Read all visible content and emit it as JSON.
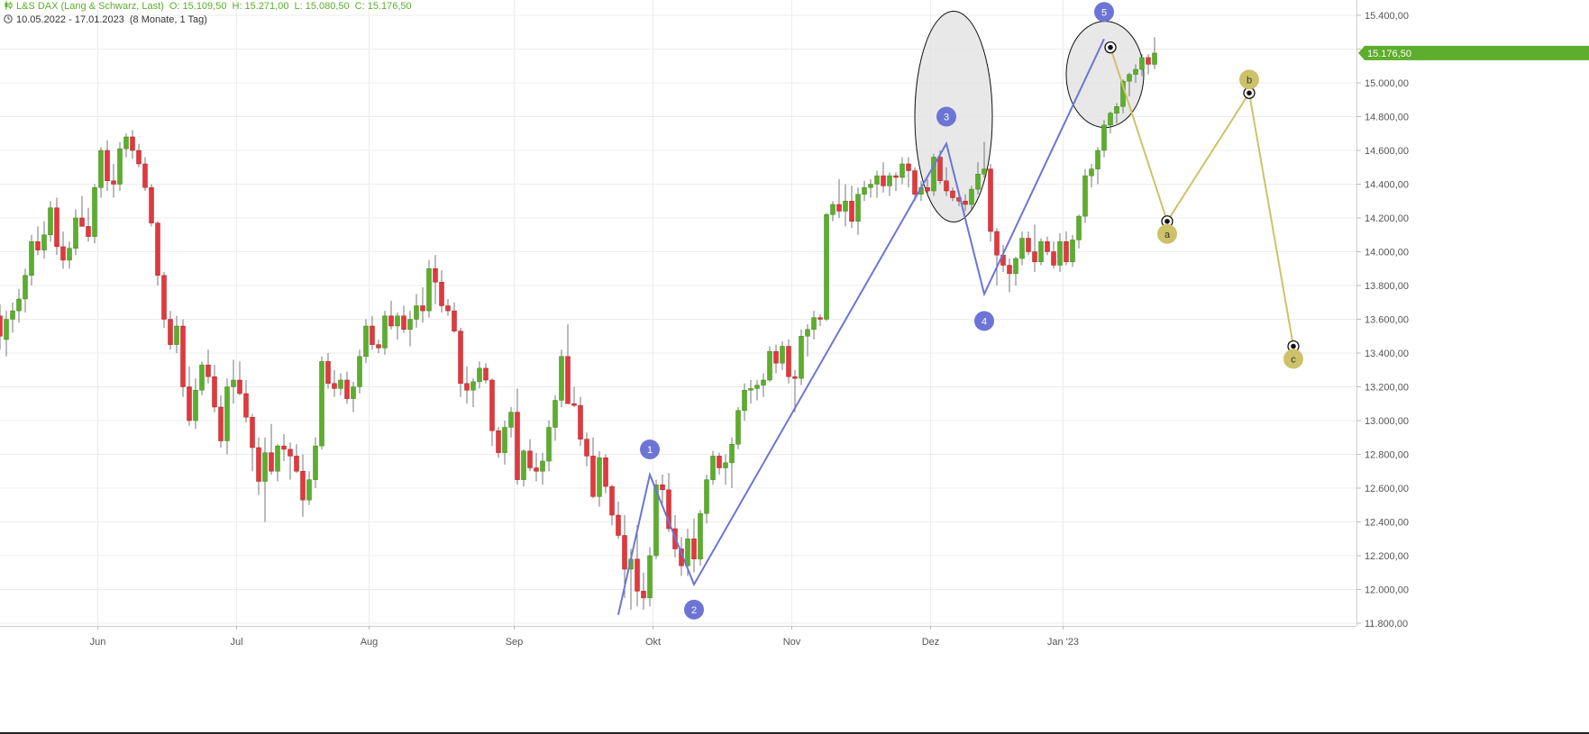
{
  "header": {
    "instrument": "L&S DAX (Lang & Schwarz, Last)",
    "open": "O: 15.109,50",
    "high": "H: 15.271,00",
    "low": "L: 15.080,50",
    "close": "C: 15.176,50",
    "range": "10.05.2022 - 17.01.2023",
    "period": "(8 Monate, 1 Tag)",
    "chart_icon": "candlestick-icon",
    "clock_icon": "clock-icon"
  },
  "colors": {
    "up": "#5cae2c",
    "down": "#e0393e",
    "wave_impulse": "#6c75d6",
    "wave_correction": "#cdc26a",
    "grid": "#ececec",
    "ellipse_fill": "#e4e4e4",
    "price_tag": "#5cae2c"
  },
  "chart_data": {
    "type": "candlestick",
    "x_axis_labels": [
      "Jun",
      "Jul",
      "Aug",
      "Sep",
      "Okt",
      "Nov",
      "Dez",
      "Jan '23"
    ],
    "y_ticks": [
      "15.400,00",
      "15.200,00",
      "15.000,00",
      "14.800,00",
      "14.600,00",
      "14.400,00",
      "14.200,00",
      "14.000,00",
      "13.800,00",
      "13.600,00",
      "13.400,00",
      "13.200,00",
      "13.000,00",
      "12.800,00",
      "12.600,00",
      "12.400,00",
      "12.200,00",
      "12.000,00",
      "11.800,00"
    ],
    "y_tick_values": [
      15400,
      15200,
      15000,
      14800,
      14600,
      14400,
      14200,
      14000,
      13800,
      13600,
      13400,
      13200,
      13000,
      12800,
      12600,
      12400,
      12200,
      12000,
      11800
    ],
    "ylim": [
      11700,
      15470
    ],
    "month_starts": [
      {
        "label": "Jun",
        "index": 15.5
      },
      {
        "label": "Jul",
        "index": 37.5
      },
      {
        "label": "Aug",
        "index": 58.5
      },
      {
        "label": "Sep",
        "index": 81.5
      },
      {
        "label": "Okt",
        "index": 103.5
      },
      {
        "label": "Nov",
        "index": 125.5
      },
      {
        "label": "Dez",
        "index": 147.5
      },
      {
        "label": "Jan '23",
        "index": 168.5
      }
    ],
    "last_price_label": "15.176,50",
    "last_price": 15176.5,
    "candles": [
      [
        13620,
        13690,
        13420,
        13500
      ],
      [
        13480,
        13650,
        13380,
        13600
      ],
      [
        13600,
        13700,
        13520,
        13650
      ],
      [
        13650,
        13780,
        13580,
        13720
      ],
      [
        13720,
        13900,
        13640,
        13860
      ],
      [
        13860,
        14100,
        13800,
        14060
      ],
      [
        14060,
        14150,
        13980,
        14010
      ],
      [
        14010,
        14180,
        13960,
        14100
      ],
      [
        14100,
        14300,
        14060,
        14260
      ],
      [
        14260,
        14320,
        13980,
        14030
      ],
      [
        14030,
        14120,
        13900,
        13950
      ],
      [
        13950,
        14060,
        13900,
        14020
      ],
      [
        14020,
        14250,
        13980,
        14200
      ],
      [
        14200,
        14330,
        14150,
        14150
      ],
      [
        14150,
        14260,
        14060,
        14090
      ],
      [
        14090,
        14400,
        14050,
        14380
      ],
      [
        14380,
        14620,
        14320,
        14600
      ],
      [
        14600,
        14660,
        14360,
        14420
      ],
      [
        14420,
        14520,
        14320,
        14400
      ],
      [
        14400,
        14650,
        14360,
        14610
      ],
      [
        14610,
        14700,
        14560,
        14680
      ],
      [
        14680,
        14720,
        14550,
        14600
      ],
      [
        14600,
        14640,
        14500,
        14520
      ],
      [
        14520,
        14560,
        14360,
        14380
      ],
      [
        14380,
        14400,
        14150,
        14170
      ],
      [
        14170,
        14180,
        13800,
        13860
      ],
      [
        13860,
        13880,
        13550,
        13600
      ],
      [
        13600,
        13650,
        13420,
        13450
      ],
      [
        13450,
        13620,
        13400,
        13560
      ],
      [
        13560,
        13600,
        13140,
        13200
      ],
      [
        13200,
        13320,
        12970,
        13000
      ],
      [
        13000,
        13250,
        12950,
        13180
      ],
      [
        13180,
        13350,
        13150,
        13330
      ],
      [
        13330,
        13420,
        13220,
        13260
      ],
      [
        13260,
        13330,
        13050,
        13080
      ],
      [
        13080,
        13150,
        12840,
        12880
      ],
      [
        12880,
        13250,
        12800,
        13200
      ],
      [
        13200,
        13360,
        13100,
        13240
      ],
      [
        13240,
        13350,
        13150,
        13160
      ],
      [
        13160,
        13240,
        12990,
        13020
      ],
      [
        13020,
        13040,
        12700,
        12840
      ],
      [
        12840,
        12900,
        12560,
        12640
      ],
      [
        12640,
        12900,
        12400,
        12810
      ],
      [
        12810,
        12980,
        12680,
        12700
      ],
      [
        12700,
        12860,
        12640,
        12850
      ],
      [
        12850,
        12920,
        12760,
        12830
      ],
      [
        12830,
        12870,
        12650,
        12790
      ],
      [
        12790,
        12860,
        12690,
        12700
      ],
      [
        12700,
        12800,
        12430,
        12530
      ],
      [
        12530,
        12700,
        12500,
        12650
      ],
      [
        12650,
        12900,
        12600,
        12850
      ],
      [
        12850,
        13380,
        12830,
        13350
      ],
      [
        13350,
        13400,
        13190,
        13220
      ],
      [
        13220,
        13300,
        13140,
        13190
      ],
      [
        13190,
        13280,
        13150,
        13240
      ],
      [
        13240,
        13290,
        13100,
        13130
      ],
      [
        13130,
        13230,
        13050,
        13200
      ],
      [
        13200,
        13420,
        13160,
        13380
      ],
      [
        13380,
        13600,
        13340,
        13560
      ],
      [
        13560,
        13620,
        13420,
        13450
      ],
      [
        13450,
        13480,
        13400,
        13430
      ],
      [
        13430,
        13650,
        13390,
        13620
      ],
      [
        13620,
        13710,
        13540,
        13560
      ],
      [
        13560,
        13640,
        13480,
        13620
      ],
      [
        13620,
        13680,
        13520,
        13540
      ],
      [
        13540,
        13650,
        13440,
        13600
      ],
      [
        13600,
        13750,
        13550,
        13680
      ],
      [
        13680,
        13790,
        13580,
        13650
      ],
      [
        13650,
        13950,
        13610,
        13900
      ],
      [
        13900,
        13980,
        13690,
        13820
      ],
      [
        13820,
        13890,
        13640,
        13680
      ],
      [
        13680,
        13720,
        13620,
        13650
      ],
      [
        13650,
        13700,
        13520,
        13530
      ],
      [
        13530,
        13550,
        13140,
        13220
      ],
      [
        13220,
        13320,
        13100,
        13180
      ],
      [
        13180,
        13250,
        13080,
        13230
      ],
      [
        13230,
        13350,
        13190,
        13310
      ],
      [
        13310,
        13340,
        13220,
        13240
      ],
      [
        13240,
        13250,
        12850,
        12940
      ],
      [
        12940,
        12960,
        12780,
        12810
      ],
      [
        12810,
        13000,
        12740,
        12960
      ],
      [
        12960,
        13080,
        12900,
        13050
      ],
      [
        13050,
        13190,
        12620,
        12650
      ],
      [
        12650,
        12830,
        12610,
        12820
      ],
      [
        12820,
        12890,
        12700,
        12720
      ],
      [
        12720,
        12810,
        12640,
        12700
      ],
      [
        12700,
        12810,
        12620,
        12760
      ],
      [
        12760,
        13000,
        12700,
        12960
      ],
      [
        12960,
        13150,
        12880,
        13120
      ],
      [
        13120,
        13420,
        13080,
        13380
      ],
      [
        13380,
        13570,
        13100,
        13100
      ],
      [
        13100,
        13200,
        13080,
        13090
      ],
      [
        13090,
        13140,
        12850,
        12890
      ],
      [
        12890,
        12930,
        12730,
        12790
      ],
      [
        12790,
        12900,
        12540,
        12550
      ],
      [
        12550,
        12820,
        12490,
        12780
      ],
      [
        12780,
        12800,
        12570,
        12610
      ],
      [
        12610,
        12620,
        12380,
        12440
      ],
      [
        12440,
        12520,
        12300,
        12320
      ],
      [
        12320,
        12440,
        11950,
        12120
      ],
      [
        12120,
        12240,
        11880,
        12180
      ],
      [
        12180,
        12380,
        11900,
        11990
      ],
      [
        11990,
        12100,
        11880,
        11950
      ],
      [
        11950,
        12250,
        11900,
        12200
      ],
      [
        12200,
        12650,
        12180,
        12620
      ],
      [
        12620,
        12680,
        12510,
        12590
      ],
      [
        12590,
        12690,
        12340,
        12360
      ],
      [
        12360,
        12440,
        12190,
        12240
      ],
      [
        12240,
        12310,
        12080,
        12140
      ],
      [
        12140,
        12360,
        12080,
        12300
      ],
      [
        12300,
        12420,
        12100,
        12180
      ],
      [
        12180,
        12470,
        12140,
        12450
      ],
      [
        12450,
        12680,
        12390,
        12650
      ],
      [
        12650,
        12820,
        12620,
        12790
      ],
      [
        12790,
        12810,
        12680,
        12720
      ],
      [
        12720,
        12800,
        12620,
        12750
      ],
      [
        12750,
        12900,
        12600,
        12860
      ],
      [
        12860,
        13080,
        12830,
        13060
      ],
      [
        13060,
        13220,
        13000,
        13180
      ],
      [
        13180,
        13240,
        13100,
        13190
      ],
      [
        13190,
        13240,
        13120,
        13210
      ],
      [
        13210,
        13280,
        13140,
        13240
      ],
      [
        13240,
        13440,
        13230,
        13410
      ],
      [
        13410,
        13450,
        13280,
        13340
      ],
      [
        13340,
        13470,
        13300,
        13440
      ],
      [
        13440,
        13480,
        13220,
        13260
      ],
      [
        13260,
        13300,
        13050,
        13250
      ],
      [
        13250,
        13540,
        13210,
        13500
      ],
      [
        13500,
        13570,
        13380,
        13540
      ],
      [
        13540,
        13650,
        13480,
        13610
      ],
      [
        13610,
        13630,
        13560,
        13600
      ],
      [
        13600,
        14230,
        13590,
        14220
      ],
      [
        14220,
        14300,
        14180,
        14280
      ],
      [
        14280,
        14430,
        14200,
        14240
      ],
      [
        14240,
        14400,
        14150,
        14300
      ],
      [
        14300,
        14390,
        14140,
        14180
      ],
      [
        14180,
        14380,
        14100,
        14340
      ],
      [
        14340,
        14420,
        14300,
        14380
      ],
      [
        14380,
        14430,
        14320,
        14400
      ],
      [
        14400,
        14480,
        14320,
        14450
      ],
      [
        14450,
        14530,
        14350,
        14390
      ],
      [
        14390,
        14470,
        14330,
        14450
      ],
      [
        14450,
        14470,
        14360,
        14440
      ],
      [
        14440,
        14560,
        14400,
        14520
      ],
      [
        14520,
        14560,
        14380,
        14480
      ],
      [
        14480,
        14500,
        14300,
        14340
      ],
      [
        14340,
        14420,
        14300,
        14380
      ],
      [
        14380,
        14430,
        14330,
        14360
      ],
      [
        14360,
        14580,
        14330,
        14560
      ],
      [
        14560,
        14600,
        14400,
        14420
      ],
      [
        14420,
        14500,
        14330,
        14360
      ],
      [
        14360,
        14380,
        14300,
        14320
      ],
      [
        14320,
        14360,
        14270,
        14300
      ],
      [
        14300,
        14340,
        14240,
        14280
      ],
      [
        14280,
        14390,
        14250,
        14370
      ],
      [
        14370,
        14530,
        14340,
        14460
      ],
      [
        14460,
        14650,
        14440,
        14490
      ],
      [
        14490,
        14520,
        14060,
        14120
      ],
      [
        14120,
        14140,
        13800,
        13980
      ],
      [
        13980,
        14040,
        13880,
        13920
      ],
      [
        13920,
        13960,
        13760,
        13870
      ],
      [
        13870,
        13970,
        13800,
        13960
      ],
      [
        13960,
        14120,
        13920,
        14080
      ],
      [
        14080,
        14120,
        13980,
        14000
      ],
      [
        14000,
        14160,
        13880,
        13940
      ],
      [
        13940,
        14080,
        13920,
        14060
      ],
      [
        14060,
        14090,
        13980,
        14000
      ],
      [
        14000,
        14060,
        13900,
        13920
      ],
      [
        13920,
        14110,
        13880,
        14060
      ],
      [
        14060,
        14120,
        13920,
        13940
      ],
      [
        13940,
        14100,
        13910,
        14070
      ],
      [
        14070,
        14220,
        14020,
        14210
      ],
      [
        14210,
        14490,
        14170,
        14450
      ],
      [
        14450,
        14520,
        14380,
        14490
      ],
      [
        14490,
        14620,
        14400,
        14600
      ],
      [
        14600,
        14780,
        14560,
        14750
      ],
      [
        14750,
        14830,
        14700,
        14820
      ],
      [
        14820,
        14880,
        14760,
        14860
      ],
      [
        14860,
        15020,
        14820,
        15010
      ],
      [
        15010,
        15060,
        14920,
        15050
      ],
      [
        15050,
        15110,
        15000,
        15080
      ],
      [
        15080,
        15170,
        15040,
        15150
      ],
      [
        15150,
        15170,
        15050,
        15110
      ],
      [
        15109.5,
        15271,
        15080.5,
        15176.5
      ]
    ],
    "impulse_wave": [
      {
        "label": "",
        "index": 98,
        "price": 11850
      },
      {
        "label": "1",
        "index": 103,
        "price": 12680
      },
      {
        "label": "2",
        "index": 110,
        "price": 12030
      },
      {
        "label": "3",
        "index": 150,
        "price": 14640
      },
      {
        "label": "4",
        "index": 156,
        "price": 13750
      },
      {
        "label": "5",
        "index": 175,
        "price": 15260
      }
    ],
    "correction_wave": [
      {
        "label": "",
        "index": 176,
        "price": 15210
      },
      {
        "label": "a",
        "index": 185,
        "price": 14180
      },
      {
        "label": "b",
        "index": 198,
        "price": 14940
      },
      {
        "label": "c",
        "index": 205,
        "price": 13440
      }
    ],
    "ellipses": [
      {
        "index": 151,
        "price": 14800
      },
      {
        "index": 175,
        "price": 15050
      }
    ]
  }
}
